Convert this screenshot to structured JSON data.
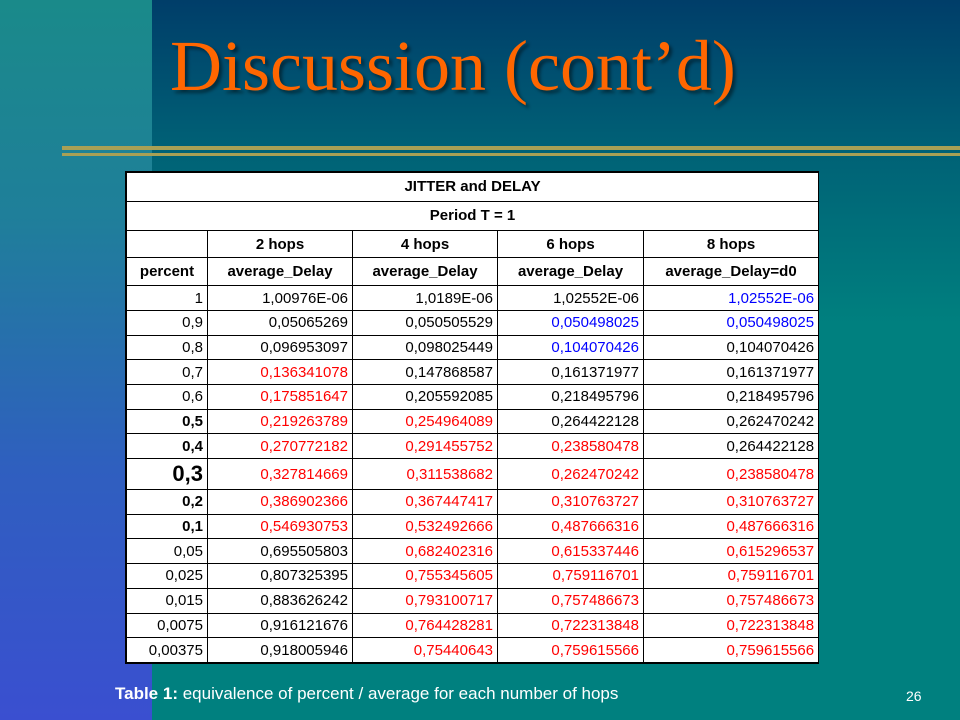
{
  "slide": {
    "title": "Discussion (cont’d)",
    "caption_bold": "Table 1:",
    "caption_text": " equivalence of percent / average for each number of hops",
    "page_number": "26",
    "colors": {
      "title": "#ff6600",
      "red_values": "#ff0000",
      "blue_values": "#0000ff"
    }
  },
  "table": {
    "title": "JITTER and DELAY",
    "subtitle": "Period T = 1",
    "hops": [
      "2 hops",
      "4 hops",
      "6 hops",
      "8 hops"
    ],
    "percent_header": "percent",
    "columns": [
      "average_Delay",
      "average_Delay",
      "average_Delay",
      "average_Delay=d0"
    ],
    "rows": [
      {
        "percent": "1",
        "style": "",
        "values": [
          "1,00976E-06",
          "1,0189E-06",
          "1,02552E-06",
          "1,02552E-06"
        ],
        "colors": [
          "",
          "",
          "",
          "blue"
        ]
      },
      {
        "percent": "0,9",
        "style": "",
        "values": [
          "0,05065269",
          "0,050505529",
          "0,050498025",
          "0,050498025"
        ],
        "colors": [
          "",
          "",
          "blue",
          "blue"
        ]
      },
      {
        "percent": "0,8",
        "style": "",
        "values": [
          "0,096953097",
          "0,098025449",
          "0,104070426",
          "0,104070426"
        ],
        "colors": [
          "",
          "",
          "blue",
          ""
        ]
      },
      {
        "percent": "0,7",
        "style": "",
        "values": [
          "0,136341078",
          "0,147868587",
          "0,161371977",
          "0,161371977"
        ],
        "colors": [
          "red",
          "",
          "",
          ""
        ]
      },
      {
        "percent": "0,6",
        "style": "",
        "values": [
          "0,175851647",
          "0,205592085",
          "0,218495796",
          "0,218495796"
        ],
        "colors": [
          "red",
          "",
          "",
          ""
        ]
      },
      {
        "percent": "0,5",
        "style": "bold",
        "values": [
          "0,219263789",
          "0,254964089",
          "0,264422128",
          "0,262470242"
        ],
        "colors": [
          "red",
          "red",
          "",
          ""
        ]
      },
      {
        "percent": "0,4",
        "style": "bold",
        "values": [
          "0,270772182",
          "0,291455752",
          "0,238580478",
          "0,264422128"
        ],
        "colors": [
          "red",
          "red",
          "red",
          ""
        ]
      },
      {
        "percent": "0,3",
        "style": "big",
        "values": [
          "0,327814669",
          "0,311538682",
          "0,262470242",
          "0,238580478"
        ],
        "colors": [
          "red",
          "red",
          "red",
          "red"
        ]
      },
      {
        "percent": "0,2",
        "style": "bold",
        "values": [
          "0,386902366",
          "0,367447417",
          "0,310763727",
          "0,310763727"
        ],
        "colors": [
          "red",
          "red",
          "red",
          "red"
        ]
      },
      {
        "percent": "0,1",
        "style": "bold",
        "values": [
          "0,546930753",
          "0,532492666",
          "0,487666316",
          "0,487666316"
        ],
        "colors": [
          "red",
          "red",
          "red",
          "red"
        ]
      },
      {
        "percent": "0,05",
        "style": "",
        "values": [
          "0,695505803",
          "0,682402316",
          "0,615337446",
          "0,615296537"
        ],
        "colors": [
          "",
          "red",
          "red",
          "red"
        ]
      },
      {
        "percent": "0,025",
        "style": "",
        "values": [
          "0,807325395",
          "0,755345605",
          "0,759116701",
          "0,759116701"
        ],
        "colors": [
          "",
          "red",
          "red",
          "red"
        ]
      },
      {
        "percent": "0,015",
        "style": "",
        "values": [
          "0,883626242",
          "0,793100717",
          "0,757486673",
          "0,757486673"
        ],
        "colors": [
          "",
          "red",
          "red",
          "red"
        ]
      },
      {
        "percent": "0,0075",
        "style": "",
        "values": [
          "0,916121676",
          "0,764428281",
          "0,722313848",
          "0,722313848"
        ],
        "colors": [
          "",
          "red",
          "red",
          "red"
        ]
      },
      {
        "percent": "0,00375",
        "style": "",
        "values": [
          "0,918005946",
          "0,75440643",
          "0,759615566",
          "0,759615566"
        ],
        "colors": [
          "",
          "red",
          "red",
          "red"
        ]
      }
    ]
  }
}
